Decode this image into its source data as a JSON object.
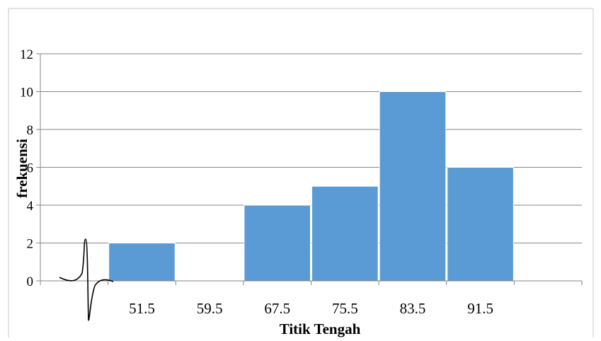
{
  "chart_data": {
    "type": "bar",
    "title": "",
    "xlabel": "Titik Tengah",
    "ylabel": "frekuensi",
    "categories": [
      "",
      "51.5",
      "59.5",
      "67.5",
      "75.5",
      "83.5",
      "91.5",
      ""
    ],
    "values": [
      null,
      2,
      null,
      4,
      5,
      10,
      6,
      null
    ],
    "y_ticks": [
      "0",
      "2",
      "4",
      "6",
      "8",
      "10",
      "12"
    ],
    "ylim": [
      0,
      12
    ],
    "grid": true,
    "legend": "none",
    "colors": {
      "bar": "#5b9bd5",
      "grid": "#868686",
      "axis": "#868686",
      "text": "#000000"
    }
  }
}
